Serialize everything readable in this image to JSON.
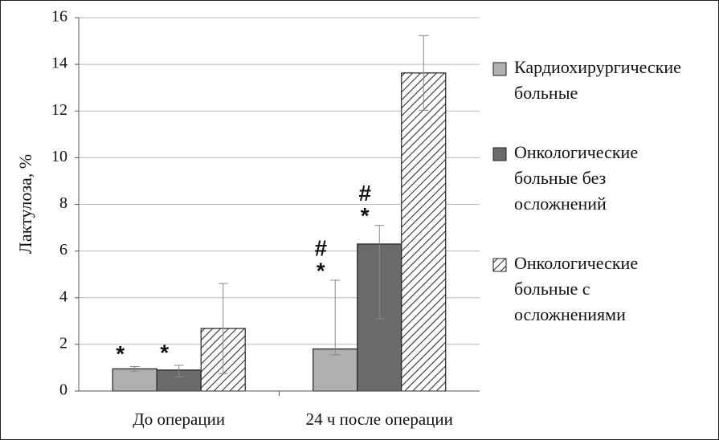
{
  "chart_data": {
    "type": "bar",
    "y_label": "Лактулоза, %",
    "categories": [
      "До операции",
      "24 ч после операции"
    ],
    "series": [
      {
        "name": "Кардиохирургические больные",
        "color": "#b0b0b0",
        "values": [
          0.95,
          1.8
        ],
        "error_plus": [
          0.1,
          2.95
        ],
        "error_minus": [
          0.1,
          0.25
        ],
        "marks": [
          [
            "*"
          ],
          [
            "#",
            "*"
          ]
        ]
      },
      {
        "name": "Онкологические больные без осложнений",
        "color": "#6a6a6a",
        "values": [
          0.9,
          6.3
        ],
        "error_plus": [
          0.2,
          0.8
        ],
        "error_minus": [
          0.3,
          3.2
        ],
        "marks": [
          [
            "*"
          ],
          [
            "#",
            "*"
          ]
        ]
      },
      {
        "name": "Онкологические больные с осложнениями",
        "color": "hatch",
        "values": [
          2.68,
          13.63
        ],
        "error_plus": [
          1.93,
          1.6
        ],
        "error_minus": [
          1.93,
          1.6
        ],
        "marks": [
          null,
          null
        ]
      }
    ],
    "ylim": [
      0,
      16
    ],
    "yticks": [
      0,
      2,
      4,
      6,
      8,
      10,
      12,
      14,
      16
    ],
    "grid": true,
    "legend": "right"
  }
}
